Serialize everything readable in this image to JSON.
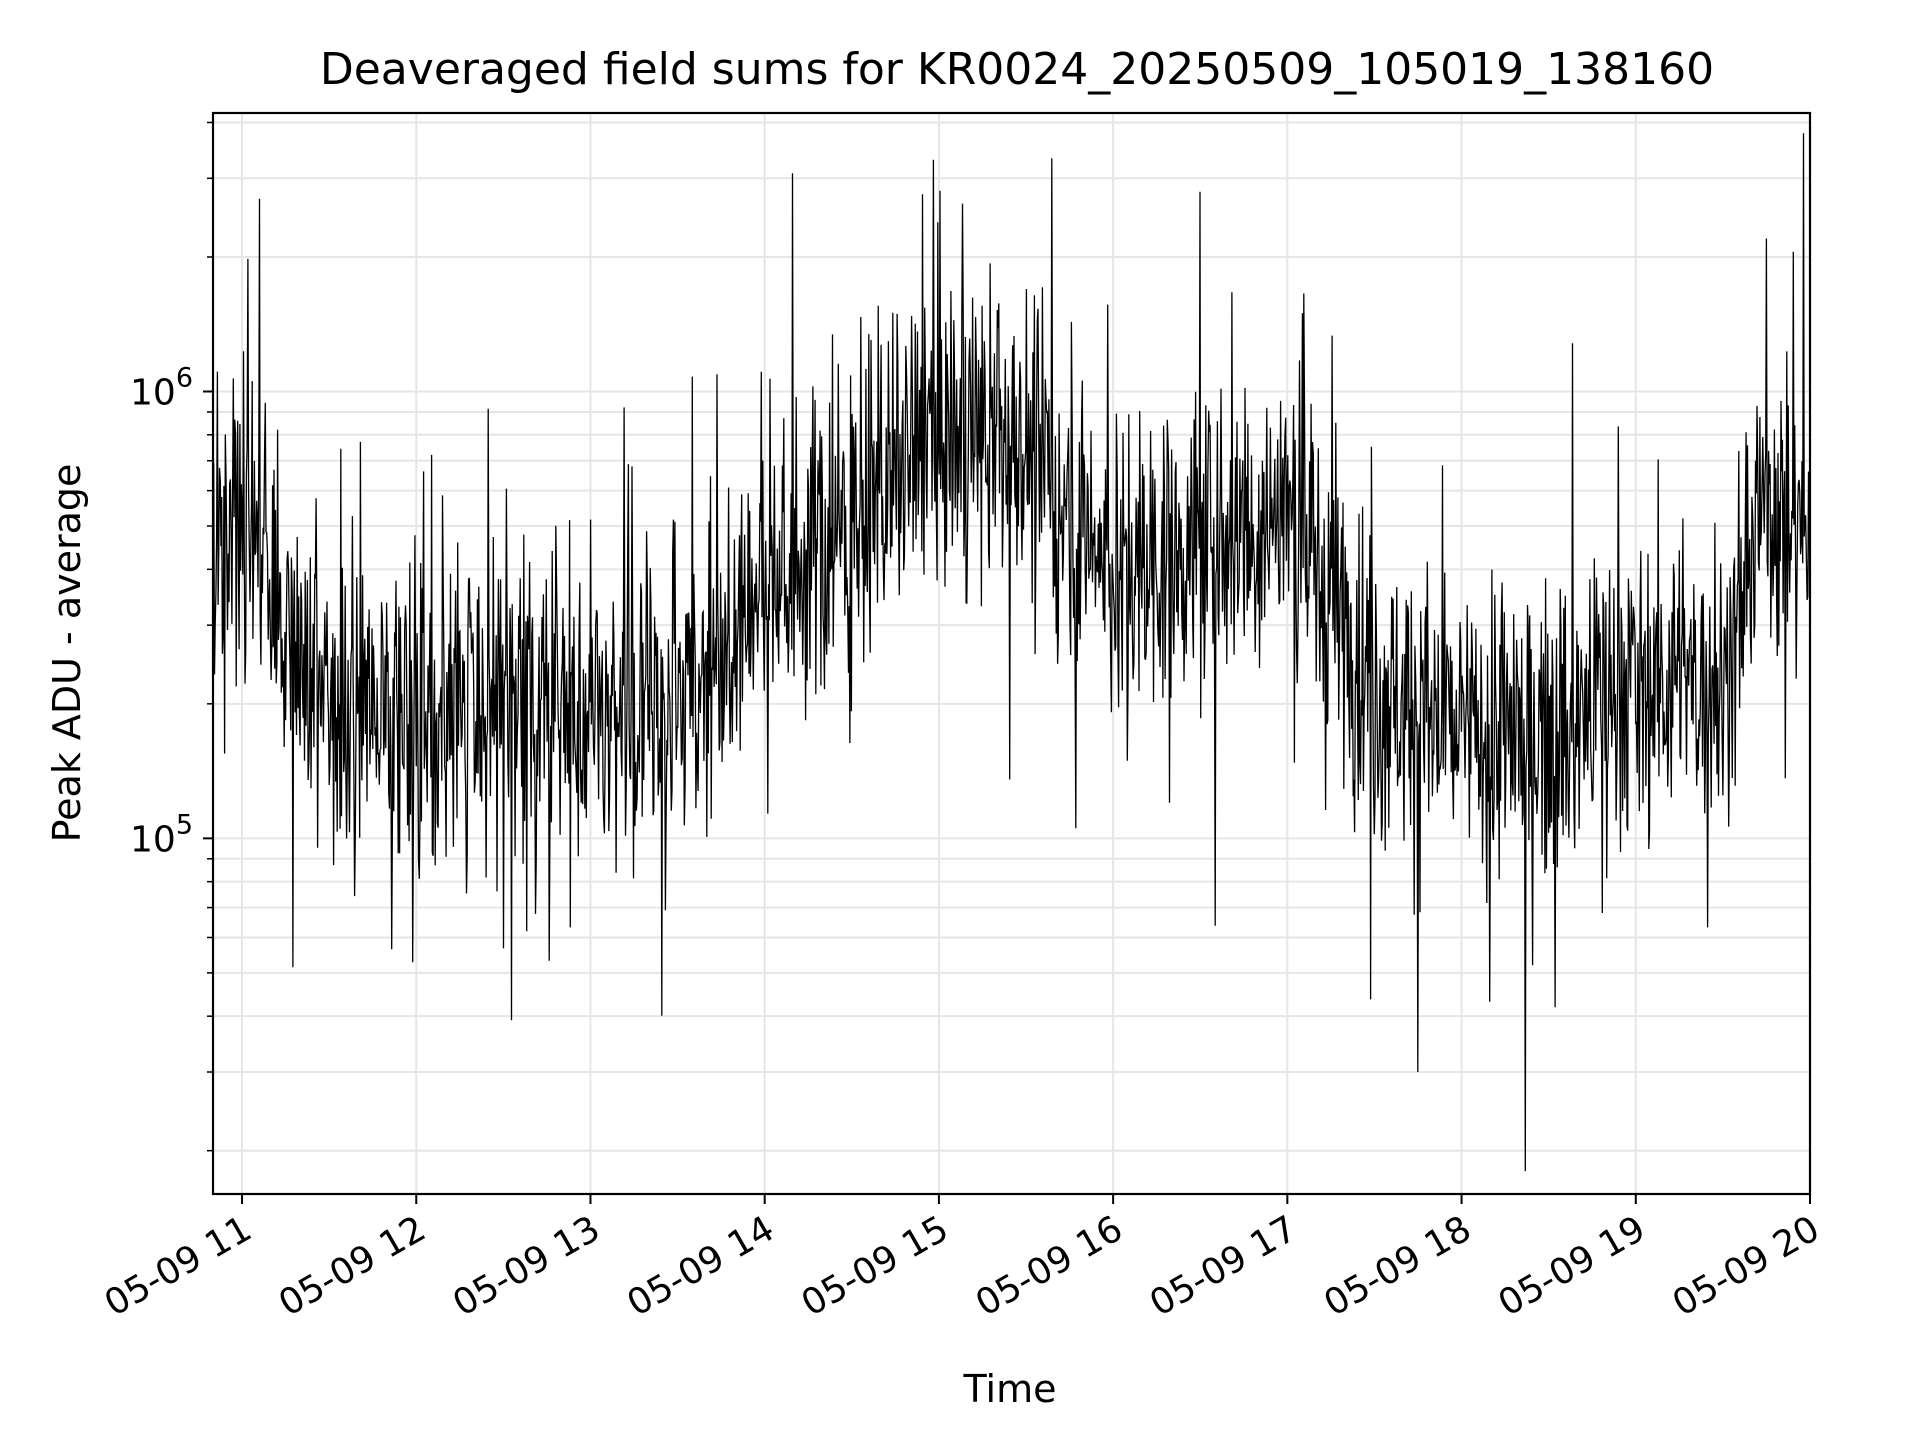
{
  "chart_data": {
    "type": "line",
    "title": "Deaveraged field sums for KR0024_20250509_105019_138160",
    "xlabel": "Time",
    "ylabel": "Peak ADU - average",
    "yscale": "log",
    "ylim": [
      16000,
      4200000
    ],
    "xlim": [
      "2025-05-09 10:50",
      "2025-05-09 20:00"
    ],
    "grid": true,
    "x_ticks": [
      "05-09 11",
      "05-09 12",
      "05-09 13",
      "05-09 14",
      "05-09 15",
      "05-09 16",
      "05-09 17",
      "05-09 18",
      "05-09 19",
      "05-09 20"
    ],
    "y_ticks": [
      {
        "base": "10",
        "exp": "5"
      },
      {
        "base": "10",
        "exp": "6"
      }
    ],
    "series": [
      {
        "color": "#000000",
        "x": [
          "2025-05-09 10:50",
          "2025-05-09 11:00",
          "2025-05-09 11:15",
          "2025-05-09 11:30",
          "2025-05-09 11:45",
          "2025-05-09 12:00",
          "2025-05-09 12:30",
          "2025-05-09 13:00",
          "2025-05-09 13:30",
          "2025-05-09 14:00",
          "2025-05-09 14:30",
          "2025-05-09 15:00",
          "2025-05-09 15:30",
          "2025-05-09 16:00",
          "2025-05-09 16:30",
          "2025-05-09 17:00",
          "2025-05-09 17:30",
          "2025-05-09 18:00",
          "2025-05-09 18:30",
          "2025-05-09 19:00",
          "2025-05-09 19:30",
          "2025-05-09 19:45",
          "2025-05-09 20:00"
        ],
        "y": [
          450000,
          550000,
          300000,
          180000,
          190000,
          200000,
          200000,
          190000,
          200000,
          370000,
          500000,
          800000,
          750000,
          400000,
          450000,
          550000,
          220000,
          170000,
          170000,
          230000,
          220000,
          600000,
          450000
        ]
      }
    ],
    "annotations": [
      {
        "x": "2025-05-09 11:06",
        "y": 2700000
      },
      {
        "x": "2025-05-09 14:58",
        "y": 3300000
      },
      {
        "x": "2025-05-09 16:30",
        "y": 2800000
      },
      {
        "x": "2025-05-09 18:22",
        "y": 18000
      },
      {
        "x": "2025-05-09 17:45",
        "y": 30000
      },
      {
        "x": "2025-05-09 19:45",
        "y": 2200000
      }
    ]
  }
}
